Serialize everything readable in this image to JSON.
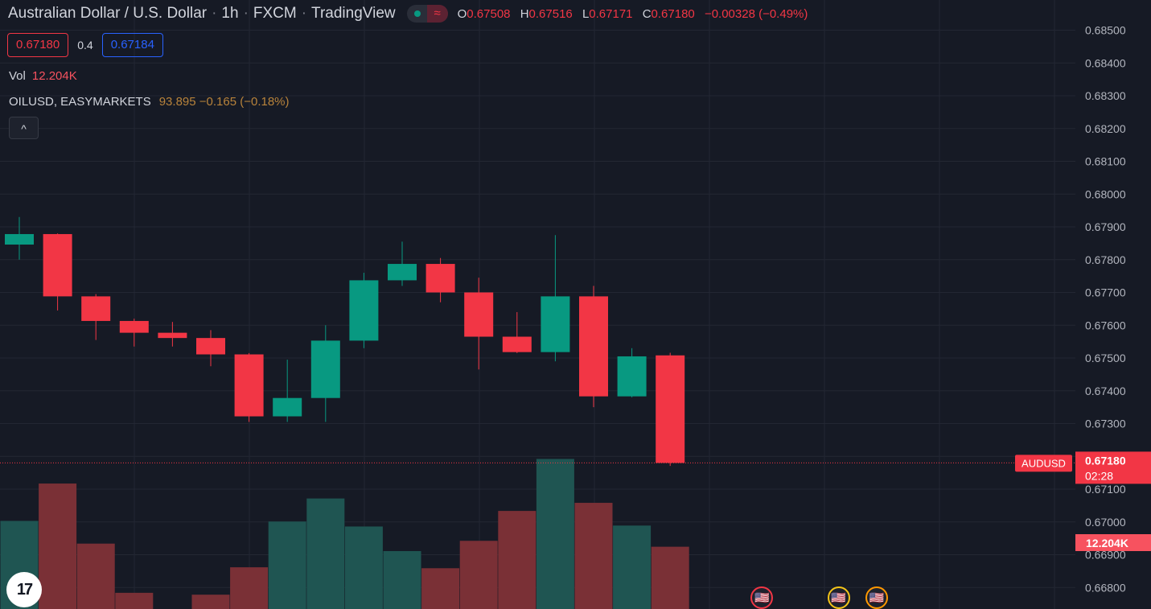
{
  "header": {
    "symbol_name": "Australian Dollar / U.S. Dollar",
    "interval": "1h",
    "exchange": "FXCM",
    "source": "TradingView",
    "open_key": "O",
    "open": "0.67508",
    "high_key": "H",
    "high": "0.67516",
    "low_key": "L",
    "low": "0.67171",
    "close_key": "C",
    "close": "0.67180",
    "change": "−0.00328 (−0.49%)",
    "status_icon": "wave-icon"
  },
  "quote": {
    "bid": "0.67180",
    "spread": "0.4",
    "ask": "0.67184"
  },
  "volume_legend": {
    "label": "Vol",
    "value": "12.204K"
  },
  "overlay_legend": {
    "label": "OILUSD, EASYMARKETS",
    "value": "93.895 −0.165 (−0.18%)"
  },
  "collapse_button": {
    "icon": "chevron-up-icon",
    "glyph": "^"
  },
  "logo": {
    "text": "17"
  },
  "colors": {
    "up": "#089981",
    "down": "#f23645",
    "background": "#161a25",
    "grid": "#232733"
  },
  "chart_data": {
    "type": "candlestick",
    "series": [
      {
        "name": "AUDUSD",
        "values": [
          {
            "o": 0.67846,
            "h": 0.6793,
            "l": 0.678,
            "c": 0.67878
          },
          {
            "o": 0.67878,
            "h": 0.6788,
            "l": 0.67645,
            "c": 0.67688
          },
          {
            "o": 0.67688,
            "h": 0.67695,
            "l": 0.67555,
            "c": 0.67613
          },
          {
            "o": 0.67613,
            "h": 0.6762,
            "l": 0.67535,
            "c": 0.67577
          },
          {
            "o": 0.67577,
            "h": 0.6761,
            "l": 0.67535,
            "c": 0.67561
          },
          {
            "o": 0.67561,
            "h": 0.67585,
            "l": 0.67475,
            "c": 0.67511
          },
          {
            "o": 0.67511,
            "h": 0.67515,
            "l": 0.67305,
            "c": 0.67322
          },
          {
            "o": 0.67322,
            "h": 0.67495,
            "l": 0.67305,
            "c": 0.67378
          },
          {
            "o": 0.67378,
            "h": 0.676,
            "l": 0.67305,
            "c": 0.67553
          },
          {
            "o": 0.67553,
            "h": 0.6776,
            "l": 0.6753,
            "c": 0.67737
          },
          {
            "o": 0.67737,
            "h": 0.67855,
            "l": 0.6772,
            "c": 0.67787
          },
          {
            "o": 0.67787,
            "h": 0.67805,
            "l": 0.6767,
            "c": 0.677
          },
          {
            "o": 0.677,
            "h": 0.67745,
            "l": 0.67465,
            "c": 0.67565
          },
          {
            "o": 0.67565,
            "h": 0.6764,
            "l": 0.67515,
            "c": 0.67518
          },
          {
            "o": 0.67518,
            "h": 0.67875,
            "l": 0.6749,
            "c": 0.67688
          },
          {
            "o": 0.67688,
            "h": 0.6772,
            "l": 0.6735,
            "c": 0.67383
          },
          {
            "o": 0.67383,
            "h": 0.6753,
            "l": 0.6738,
            "c": 0.67505
          },
          {
            "o": 0.67508,
            "h": 0.67516,
            "l": 0.67171,
            "c": 0.6718
          }
        ]
      },
      {
        "name": "Vol",
        "values": [
          28.3,
          40.3,
          21.0,
          5.2,
          0,
          4.6,
          13.4,
          28.1,
          35.5,
          26.5,
          18.6,
          13.1,
          21.9,
          31.5,
          48.2,
          34.1,
          26.8,
          20.0
        ]
      }
    ],
    "y_ticks": [
      "0.68500",
      "0.68400",
      "0.68300",
      "0.68200",
      "0.68100",
      "0.68000",
      "0.67900",
      "0.67800",
      "0.67700",
      "0.67600",
      "0.67500",
      "0.67400",
      "0.67300",
      "0.67200",
      "0.67100",
      "0.67000",
      "0.66900",
      "0.66800"
    ],
    "ylim": [
      0.66766,
      0.6853
    ],
    "last_price_label": {
      "symbol": "AUDUSD",
      "price": "0.67180",
      "countdown": "02:28",
      "value": 0.6718
    },
    "volume_label": "12.204K",
    "events": [
      {
        "icon": "us-flag-icon",
        "slot": 19.4,
        "ring": "#f23645"
      },
      {
        "icon": "us-flag-icon",
        "slot": 21.4,
        "ring": "#f5c518"
      },
      {
        "icon": "us-flag-icon",
        "slot": 22.4,
        "ring": "#ff9800"
      }
    ]
  }
}
